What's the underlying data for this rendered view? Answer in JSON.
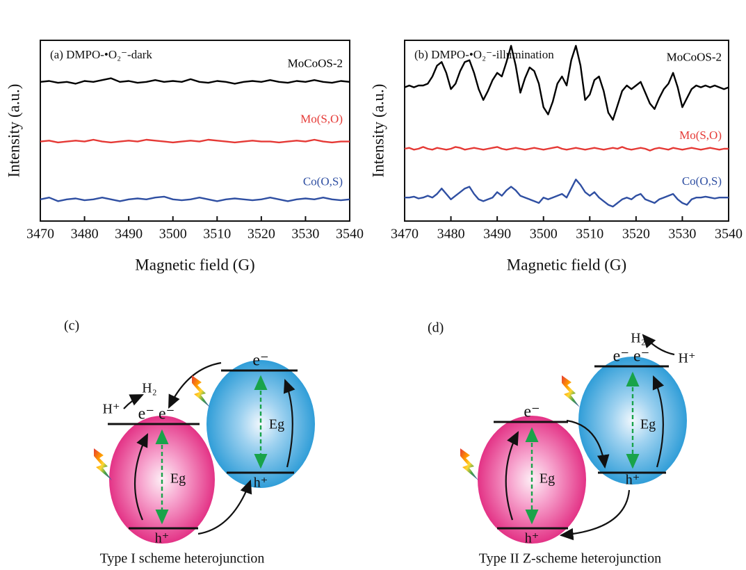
{
  "chart_data": [
    {
      "type": "line",
      "title": "(a) DMPO-•O₂⁻-dark",
      "xlabel": "Magnetic field (G)",
      "ylabel": "Intensity (a.u.)",
      "xlim": [
        3470,
        3540
      ],
      "ylim": [
        0,
        10
      ],
      "xticks": [
        3470,
        3480,
        3490,
        3500,
        3510,
        3520,
        3530,
        3540
      ],
      "x": [
        3470,
        3472,
        3474,
        3476,
        3478,
        3480,
        3482,
        3484,
        3486,
        3488,
        3490,
        3492,
        3494,
        3496,
        3498,
        3500,
        3502,
        3504,
        3506,
        3508,
        3510,
        3512,
        3514,
        3516,
        3518,
        3520,
        3522,
        3524,
        3526,
        3528,
        3530,
        3532,
        3534,
        3536,
        3538,
        3540
      ],
      "series": [
        {
          "name": "MoCoOS-2",
          "color": "#000000",
          "values": [
            7.7,
            7.75,
            7.65,
            7.7,
            7.6,
            7.75,
            7.7,
            7.8,
            7.9,
            7.7,
            7.75,
            7.65,
            7.7,
            7.8,
            7.7,
            7.75,
            7.7,
            7.85,
            7.7,
            7.65,
            7.75,
            7.7,
            7.6,
            7.7,
            7.75,
            7.7,
            7.8,
            7.7,
            7.65,
            7.75,
            7.7,
            7.8,
            7.7,
            7.65,
            7.75,
            7.7
          ]
        },
        {
          "name": "Mo(S,O)",
          "color": "#e53935",
          "values": [
            4.4,
            4.45,
            4.35,
            4.4,
            4.45,
            4.4,
            4.5,
            4.4,
            4.35,
            4.4,
            4.45,
            4.4,
            4.5,
            4.45,
            4.4,
            4.35,
            4.4,
            4.45,
            4.4,
            4.5,
            4.45,
            4.4,
            4.35,
            4.4,
            4.45,
            4.4,
            4.4,
            4.35,
            4.4,
            4.45,
            4.4,
            4.5,
            4.4,
            4.35,
            4.4,
            4.4
          ]
        },
        {
          "name": "Co(O,S)",
          "color": "#2f4fa2",
          "values": [
            1.2,
            1.3,
            1.1,
            1.2,
            1.25,
            1.15,
            1.2,
            1.3,
            1.2,
            1.1,
            1.2,
            1.25,
            1.2,
            1.3,
            1.35,
            1.2,
            1.15,
            1.2,
            1.3,
            1.2,
            1.1,
            1.2,
            1.25,
            1.2,
            1.15,
            1.2,
            1.3,
            1.2,
            1.1,
            1.2,
            1.25,
            1.2,
            1.3,
            1.2,
            1.15,
            1.2
          ]
        }
      ]
    },
    {
      "type": "line",
      "title": "(b) DMPO-•O₂⁻-illumination",
      "xlabel": "Magnetic field (G)",
      "ylabel": "Intensity (a.u.)",
      "xlim": [
        3470,
        3540
      ],
      "ylim": [
        0,
        10
      ],
      "xticks": [
        3470,
        3480,
        3490,
        3500,
        3510,
        3520,
        3530,
        3540
      ],
      "x": [
        3470,
        3471,
        3472,
        3473,
        3474,
        3475,
        3476,
        3477,
        3478,
        3479,
        3480,
        3481,
        3482,
        3483,
        3484,
        3485,
        3486,
        3487,
        3488,
        3489,
        3490,
        3491,
        3492,
        3493,
        3494,
        3495,
        3496,
        3497,
        3498,
        3499,
        3500,
        3501,
        3502,
        3503,
        3504,
        3505,
        3506,
        3507,
        3508,
        3509,
        3510,
        3511,
        3512,
        3513,
        3514,
        3515,
        3516,
        3517,
        3518,
        3519,
        3520,
        3521,
        3522,
        3523,
        3524,
        3525,
        3526,
        3527,
        3528,
        3529,
        3530,
        3531,
        3532,
        3533,
        3534,
        3535,
        3536,
        3537,
        3538,
        3539,
        3540
      ],
      "series": [
        {
          "name": "MoCoOS-2",
          "color": "#000000",
          "values": [
            7.4,
            7.5,
            7.4,
            7.5,
            7.5,
            7.6,
            8.0,
            8.6,
            8.8,
            8.2,
            7.3,
            7.6,
            8.3,
            8.8,
            8.9,
            8.2,
            7.3,
            6.7,
            7.2,
            7.8,
            8.2,
            8.0,
            8.8,
            9.7,
            8.6,
            7.1,
            7.9,
            8.5,
            8.3,
            7.6,
            6.3,
            5.9,
            6.6,
            7.6,
            8.0,
            7.5,
            8.9,
            9.7,
            8.6,
            6.7,
            7.0,
            7.8,
            8.0,
            7.2,
            6.0,
            5.6,
            6.4,
            7.2,
            7.5,
            7.3,
            7.5,
            7.7,
            7.1,
            6.5,
            6.2,
            6.8,
            7.3,
            7.6,
            8.2,
            7.4,
            6.3,
            6.8,
            7.3,
            7.5,
            7.4,
            7.5,
            7.4,
            7.5,
            7.4,
            7.3,
            7.4
          ]
        },
        {
          "name": "Mo(S,O)",
          "color": "#e53935",
          "values": [
            4.0,
            4.05,
            3.95,
            4.0,
            4.1,
            4.0,
            3.95,
            4.05,
            4.0,
            3.95,
            4.0,
            4.1,
            4.05,
            3.95,
            4.0,
            4.05,
            4.0,
            3.95,
            4.0,
            4.05,
            4.1,
            4.0,
            3.95,
            4.0,
            4.05,
            4.0,
            3.95,
            4.0,
            4.05,
            4.0,
            3.95,
            4.0,
            4.05,
            4.1,
            4.0,
            3.95,
            4.0,
            4.05,
            4.0,
            3.95,
            4.0,
            4.05,
            4.0,
            3.95,
            4.0,
            4.05,
            4.0,
            4.1,
            4.0,
            3.95,
            4.0,
            4.05,
            4.0,
            3.9,
            4.0,
            4.05,
            4.0,
            3.95,
            4.05,
            4.0,
            3.95,
            4.0,
            4.05,
            4.0,
            3.95,
            4.0,
            4.05,
            4.0,
            3.95,
            4.0,
            4.0
          ]
        },
        {
          "name": "Co(O,S)",
          "color": "#2f4fa2",
          "values": [
            1.3,
            1.3,
            1.35,
            1.25,
            1.3,
            1.4,
            1.3,
            1.5,
            1.8,
            1.5,
            1.2,
            1.4,
            1.6,
            1.8,
            1.9,
            1.5,
            1.2,
            1.1,
            1.2,
            1.3,
            1.6,
            1.4,
            1.7,
            1.9,
            1.7,
            1.4,
            1.3,
            1.2,
            1.1,
            1.0,
            1.3,
            1.2,
            1.3,
            1.4,
            1.5,
            1.3,
            1.8,
            2.3,
            2.0,
            1.6,
            1.4,
            1.6,
            1.3,
            1.1,
            0.9,
            0.8,
            1.0,
            1.2,
            1.3,
            1.2,
            1.4,
            1.5,
            1.2,
            1.1,
            1.0,
            1.2,
            1.3,
            1.4,
            1.5,
            1.2,
            1.0,
            0.9,
            1.2,
            1.3,
            1.3,
            1.35,
            1.3,
            1.25,
            1.3,
            1.3,
            1.3
          ]
        }
      ]
    }
  ],
  "diagrams": [
    {
      "label": "(c)",
      "caption": "Type I scheme heterojunction",
      "h2": "H₂",
      "h_plus": "H⁺",
      "left_top": "e⁻ e⁻",
      "right_top": "e⁻",
      "left_gap": "Eg",
      "right_gap": "Eg",
      "left_bottom": "h⁺",
      "right_bottom": "h⁺"
    },
    {
      "label": "(d)",
      "caption": "Type II Z-scheme heterojunction",
      "h2": "H₂",
      "h_plus": "H⁺",
      "left_top": "e⁻",
      "right_top": "e⁻ e⁻",
      "left_gap": "Eg",
      "right_gap": "Eg",
      "left_bottom": "h⁺",
      "right_bottom": "h⁺"
    }
  ]
}
